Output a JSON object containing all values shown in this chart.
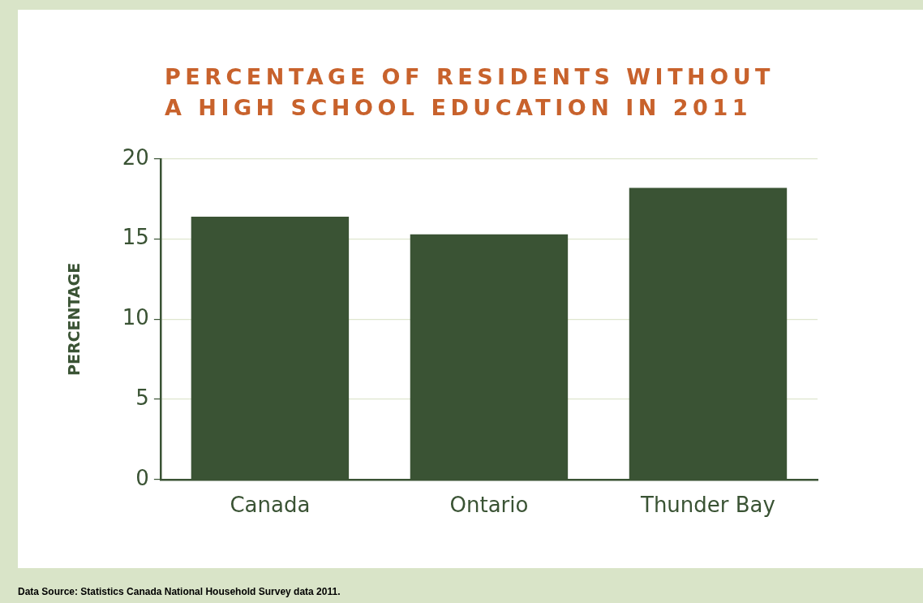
{
  "chart_data": {
    "type": "bar",
    "title": "PERCENTAGE OF RESIDENTS WITHOUT A HIGH SCHOOL EDUCATION IN 2011",
    "ylabel": "PERCENTAGE",
    "categories": [
      "Canada",
      "Ontario",
      "Thunder Bay"
    ],
    "values": [
      16.4,
      15.3,
      18.2
    ],
    "color": "#3a5334",
    "ylim": [
      0,
      20
    ],
    "yticks": [
      0,
      5,
      10,
      15,
      20
    ],
    "grid": "y",
    "annotations": [
      "Data Source: Statistics Canada National Household Survey data 2011."
    ]
  }
}
